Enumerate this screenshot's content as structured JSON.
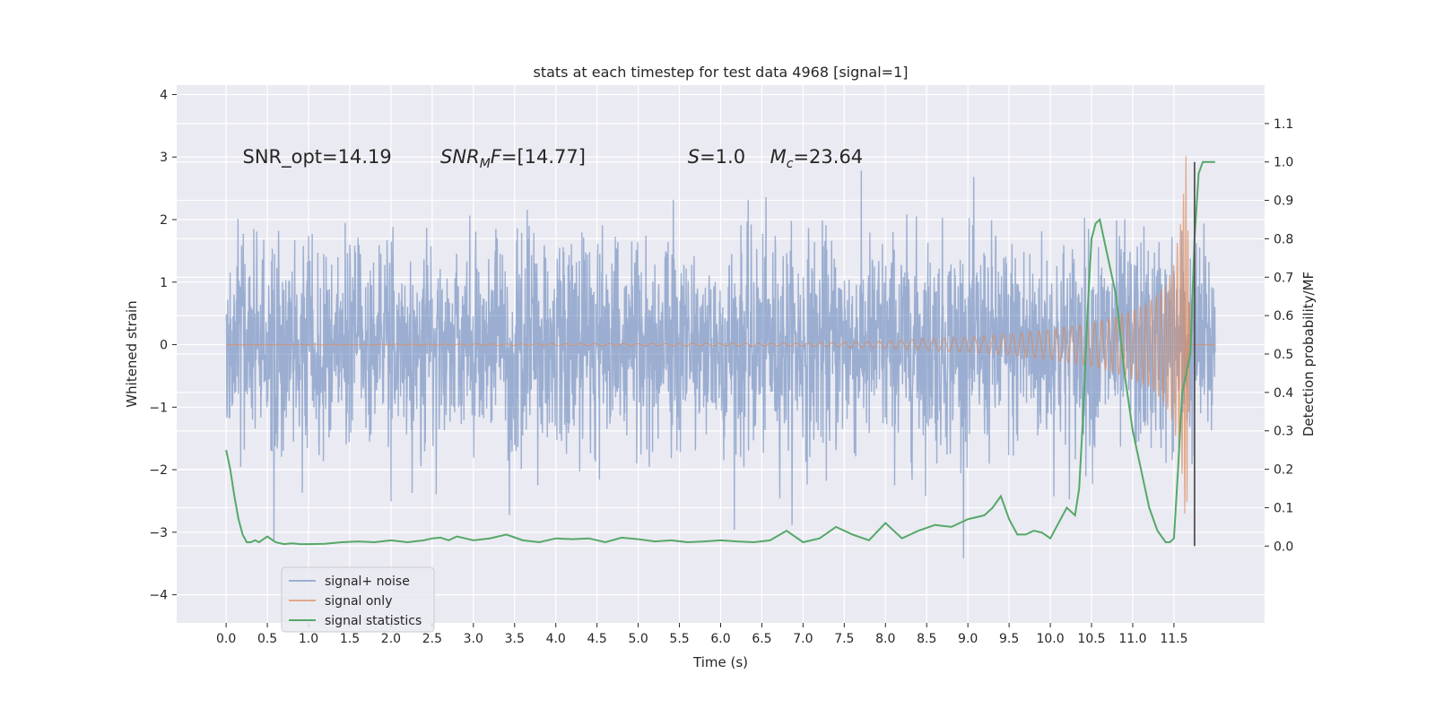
{
  "chart_data": {
    "type": "line",
    "title": "stats at each timestep for test data 4968 [signal=1]",
    "xlabel": "Time (s)",
    "ylabel": "Whitened strain",
    "ylabel_right": "Detection probability/MF",
    "xlim": [
      -0.6,
      12.6
    ],
    "ylim": [
      -4.45,
      4.15
    ],
    "ylim_right": [
      -0.2,
      1.2
    ],
    "x_ticks": [
      "0.0",
      "0.5",
      "1.0",
      "1.5",
      "2.0",
      "2.5",
      "3.0",
      "3.5",
      "4.0",
      "4.5",
      "5.0",
      "5.5",
      "6.0",
      "6.5",
      "7.0",
      "7.5",
      "8.0",
      "8.5",
      "9.0",
      "9.5",
      "10.0",
      "10.5",
      "11.0",
      "11.5"
    ],
    "y_ticks": [
      "−4",
      "−3",
      "−2",
      "−1",
      "0",
      "1",
      "2",
      "3",
      "4"
    ],
    "y_ticks_right": [
      "0.0",
      "0.1",
      "0.2",
      "0.3",
      "0.4",
      "0.5",
      "0.6",
      "0.7",
      "0.8",
      "0.9",
      "1.0",
      "1.1"
    ],
    "grid": true,
    "legend_position": "lower-left",
    "annotations": [
      {
        "pre": "SNR_opt=14.19",
        "x": 0.2,
        "y": 3.0
      },
      {
        "italic": "SNR",
        "sub": "M",
        "italic2": "F",
        "post": "=[14.77]",
        "x": 2.6,
        "y": 3.0
      },
      {
        "italic": "S",
        "post": "=1.0",
        "x": 5.6,
        "y": 3.0
      },
      {
        "italic": "M",
        "sub": "c",
        "post": "=23.64",
        "x": 6.6,
        "y": 3.0
      }
    ],
    "series": [
      {
        "name": "signal+ noise",
        "color": "#4c72b0",
        "x_range": [
          0.0,
          12.0
        ],
        "description_values": {
          "typical_abs": 1.7,
          "peak_max": 3.8,
          "peak_min": -4.1
        }
      },
      {
        "name": "signal only",
        "color": "#dd8452",
        "x": [
          0.0,
          7.0,
          8.0,
          9.0,
          9.5,
          10.0,
          10.5,
          10.8,
          11.0,
          11.2,
          11.4,
          11.5,
          11.6,
          11.65,
          11.7,
          12.0
        ],
        "amplitude": [
          0.0,
          0.02,
          0.06,
          0.12,
          0.17,
          0.24,
          0.35,
          0.45,
          0.55,
          0.68,
          0.95,
          1.3,
          2.1,
          3.1,
          0.0,
          0.0
        ]
      },
      {
        "name": "signal statistics",
        "color": "#55a868",
        "axis": "right",
        "x": [
          0.0,
          0.05,
          0.1,
          0.15,
          0.2,
          0.25,
          0.3,
          0.35,
          0.4,
          0.5,
          0.6,
          0.7,
          0.8,
          0.9,
          1.0,
          1.2,
          1.4,
          1.6,
          1.8,
          2.0,
          2.2,
          2.4,
          2.5,
          2.6,
          2.7,
          2.8,
          2.9,
          3.0,
          3.2,
          3.4,
          3.6,
          3.8,
          4.0,
          4.2,
          4.4,
          4.6,
          4.8,
          5.0,
          5.2,
          5.4,
          5.6,
          5.8,
          6.0,
          6.2,
          6.4,
          6.6,
          6.8,
          7.0,
          7.2,
          7.4,
          7.6,
          7.8,
          8.0,
          8.2,
          8.4,
          8.6,
          8.8,
          9.0,
          9.1,
          9.2,
          9.3,
          9.4,
          9.5,
          9.6,
          9.7,
          9.8,
          9.9,
          10.0,
          10.1,
          10.2,
          10.3,
          10.35,
          10.4,
          10.45,
          10.5,
          10.55,
          10.6,
          10.7,
          10.8,
          10.9,
          11.0,
          11.1,
          11.2,
          11.3,
          11.4,
          11.45,
          11.5,
          11.55,
          11.6,
          11.65,
          11.7,
          11.75,
          11.8,
          11.85,
          11.9,
          12.0
        ],
        "values": [
          0.25,
          0.2,
          0.13,
          0.07,
          0.03,
          0.01,
          0.01,
          0.015,
          0.01,
          0.025,
          0.01,
          0.005,
          0.007,
          0.005,
          0.005,
          0.006,
          0.01,
          0.012,
          0.01,
          0.015,
          0.01,
          0.015,
          0.02,
          0.022,
          0.015,
          0.025,
          0.02,
          0.015,
          0.02,
          0.03,
          0.015,
          0.01,
          0.02,
          0.018,
          0.02,
          0.01,
          0.022,
          0.018,
          0.012,
          0.015,
          0.01,
          0.012,
          0.015,
          0.012,
          0.01,
          0.015,
          0.04,
          0.01,
          0.02,
          0.05,
          0.03,
          0.015,
          0.06,
          0.02,
          0.04,
          0.055,
          0.05,
          0.07,
          0.075,
          0.08,
          0.1,
          0.13,
          0.07,
          0.03,
          0.03,
          0.04,
          0.035,
          0.02,
          0.06,
          0.1,
          0.08,
          0.15,
          0.35,
          0.6,
          0.8,
          0.84,
          0.85,
          0.75,
          0.65,
          0.45,
          0.3,
          0.2,
          0.1,
          0.04,
          0.01,
          0.01,
          0.02,
          0.2,
          0.4,
          0.45,
          0.5,
          0.8,
          0.97,
          1.0,
          1.0,
          1.0
        ]
      }
    ],
    "vertical_line": {
      "x": 11.75,
      "y_right_range": [
        0.0,
        1.0
      ],
      "color": "#555555"
    }
  }
}
